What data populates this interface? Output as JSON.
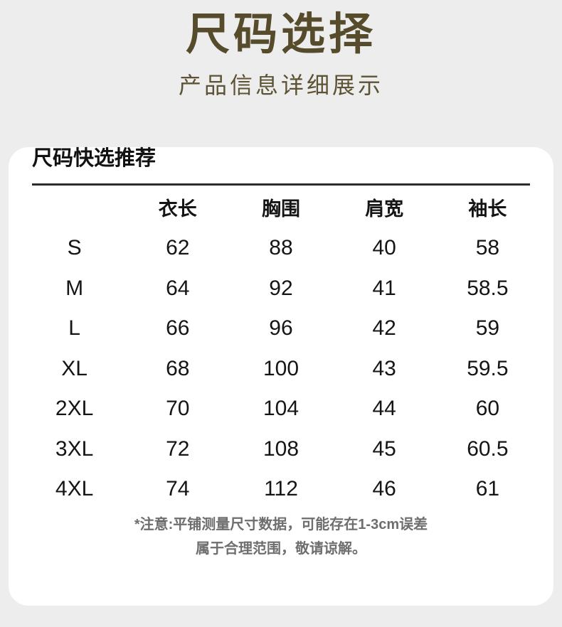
{
  "colors": {
    "background": "#ededed",
    "card": "#ffffff",
    "accent": "#564c2b",
    "table_text": "#151515",
    "note_text": "#6e6e6e"
  },
  "header": {
    "title": "尺码选择",
    "subtitle": "产品信息详细展示"
  },
  "card": {
    "heading": "尺码快选推荐",
    "table": {
      "columns": [
        "衣长",
        "胸围",
        "肩宽",
        "袖长"
      ],
      "rows": [
        {
          "size": "S",
          "values": [
            "62",
            "88",
            "40",
            "58"
          ]
        },
        {
          "size": "M",
          "values": [
            "64",
            "92",
            "41",
            "58.5"
          ]
        },
        {
          "size": "L",
          "values": [
            "66",
            "96",
            "42",
            "59"
          ]
        },
        {
          "size": "XL",
          "values": [
            "68",
            "100",
            "43",
            "59.5"
          ]
        },
        {
          "size": "2XL",
          "values": [
            "70",
            "104",
            "44",
            "60"
          ]
        },
        {
          "size": "3XL",
          "values": [
            "72",
            "108",
            "45",
            "60.5"
          ]
        },
        {
          "size": "4XL",
          "values": [
            "74",
            "112",
            "46",
            "61"
          ]
        }
      ]
    },
    "note_line1": "*注意:平铺测量尺寸数据，可能存在1-3cm误差",
    "note_line2": "属于合理范围，敬请谅解。"
  }
}
